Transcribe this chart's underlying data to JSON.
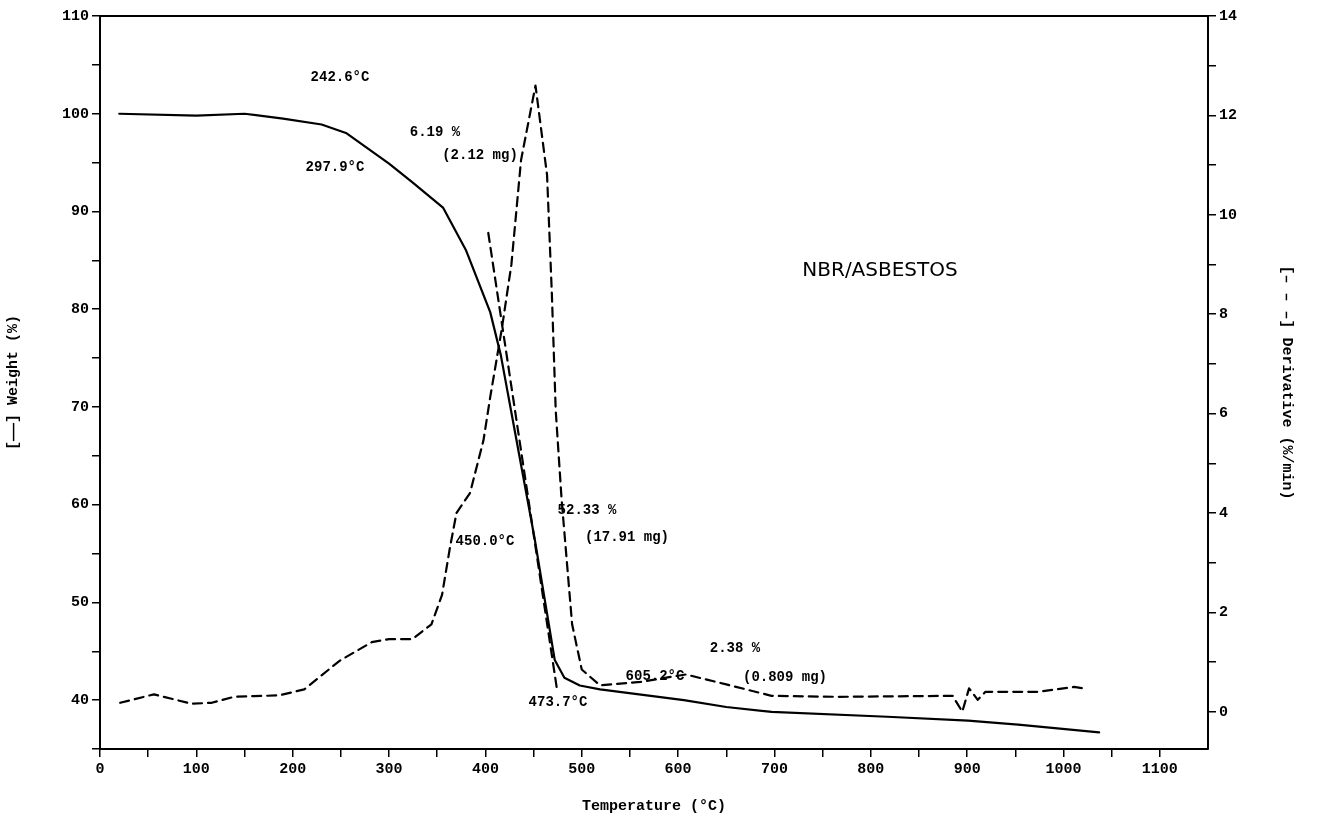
{
  "chart_data": {
    "type": "line",
    "xlabel": "Temperature (°C)",
    "ylabel": "[——] Weight (%)",
    "y2label": "[– – –] Derivative (%/min)",
    "xlim": [
      0,
      1150
    ],
    "xticks": [
      0,
      {
        "value": 50,
        "label": null
      },
      100,
      {
        "value": 150,
        "label": null
      },
      200,
      {
        "value": 250,
        "label": null
      },
      300,
      {
        "value": 350,
        "label": null
      },
      400,
      {
        "value": 450,
        "label": null
      },
      500,
      {
        "value": 550,
        "label": null
      },
      600,
      {
        "value": 650,
        "label": null
      },
      700,
      {
        "value": 750,
        "label": null
      },
      800,
      {
        "value": 850,
        "label": null
      },
      900,
      {
        "value": 950,
        "label": null
      },
      1000,
      {
        "value": 1050,
        "label": null
      },
      1100
    ],
    "ylim": [
      35,
      110
    ],
    "yticks": [
      {
        "value": 35,
        "label": null
      },
      40,
      {
        "value": 45,
        "label": null
      },
      50,
      {
        "value": 55,
        "label": null
      },
      60,
      {
        "value": 65,
        "label": null
      },
      70,
      {
        "value": 75,
        "label": null
      },
      80,
      {
        "value": 85,
        "label": null
      },
      90,
      {
        "value": 95,
        "label": null
      },
      100,
      {
        "value": 105,
        "label": null
      },
      110
    ],
    "y2lim": [
      -0.75,
      14
    ],
    "y2ticks": [
      0,
      {
        "value": 1,
        "label": null
      },
      2,
      {
        "value": 3,
        "label": null
      },
      4,
      {
        "value": 5,
        "label": null
      },
      6,
      {
        "value": 7,
        "label": null
      },
      8,
      {
        "value": 9,
        "label": null
      },
      10,
      {
        "value": 11,
        "label": null
      },
      12,
      {
        "value": 13,
        "label": null
      },
      14
    ],
    "grid": false,
    "legend": false,
    "marker": "none",
    "series": [
      {
        "color": "#000000",
        "line_style": "solid",
        "x": [
          20,
          100,
          150,
          190,
          230,
          256,
          300,
          324,
          356,
          380,
          405,
          416,
          451,
          472,
          482,
          498,
          519,
          606,
          650,
          697,
          817,
          901,
          953,
          1037
        ],
        "values": [
          100,
          99.8,
          100,
          99.5,
          98.9,
          98.0,
          94.9,
          93.0,
          90.4,
          86.0,
          79.7,
          75.3,
          56.6,
          44.1,
          42.3,
          41.5,
          41.1,
          40.0,
          39.3,
          38.8,
          38.3,
          37.9,
          37.5,
          36.7
        ]
      },
      {
        "color": "#000000",
        "line_style": "dashed",
        "axis": "y2",
        "x": [
          21,
          56,
          95,
          116,
          139,
          186,
          212,
          249,
          282,
          300,
          324,
          344,
          355,
          363,
          370,
          384,
          398,
          405,
          417,
          427,
          437,
          452,
          464,
          469,
          473,
          479,
          490,
          500,
          519,
          561,
          608,
          650,
          697,
          765,
          885,
          895,
          902,
          911,
          919,
          974,
          1011,
          1021
        ],
        "values": [
          0.18,
          0.35,
          0.16,
          0.18,
          0.3,
          0.33,
          0.45,
          1.03,
          1.4,
          1.46,
          1.46,
          1.76,
          2.35,
          3.28,
          4.0,
          4.4,
          5.46,
          6.33,
          7.7,
          9.0,
          11.1,
          12.6,
          10.8,
          8.4,
          6.06,
          4.3,
          1.76,
          0.85,
          0.53,
          0.6,
          0.75,
          0.55,
          0.32,
          0.3,
          0.32,
          0,
          0.47,
          0.24,
          0.4,
          0.4,
          0.5,
          0.47
        ]
      },
      {
        "type": "line",
        "color": "#000000",
        "line_style": "dashed",
        "x": [
          403,
          474
        ],
        "values": [
          87.8,
          41.3
        ]
      }
    ],
    "annotations": [
      "242.6°C",
      "6.19 %",
      "(2.12 mg)",
      "297.9°C",
      "450.0°C",
      "52.33 %",
      "(17.91 mg)",
      "473.7°C",
      "605.2°C",
      "2.38 %",
      "(0.809 mg)",
      "NBR/ASBESTOS"
    ]
  }
}
